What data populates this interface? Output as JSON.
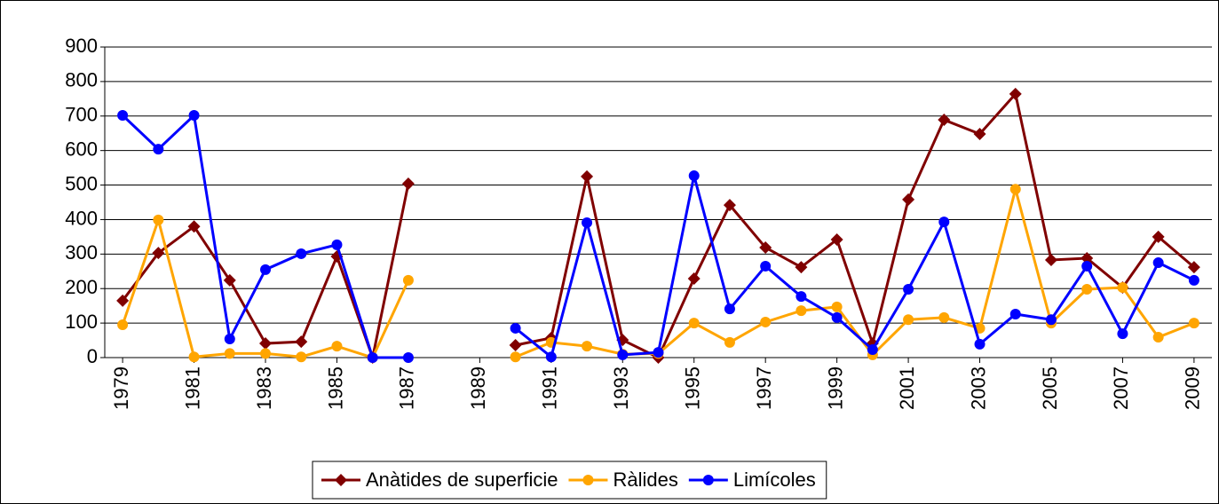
{
  "chart_data": {
    "type": "line",
    "x": [
      1979,
      1980,
      1981,
      1982,
      1983,
      1984,
      1985,
      1986,
      1987,
      1988,
      1989,
      1990,
      1991,
      1992,
      1993,
      1994,
      1995,
      1996,
      1997,
      1998,
      1999,
      2000,
      2001,
      2002,
      2003,
      2004,
      2005,
      2006,
      2007,
      2008,
      2009
    ],
    "xlim": [
      1978.5,
      2009.5
    ],
    "xticks": [
      1979,
      1981,
      1983,
      1985,
      1987,
      1989,
      1991,
      1993,
      1995,
      1997,
      1999,
      2001,
      2003,
      2005,
      2007,
      2009
    ],
    "ylim": [
      0,
      900
    ],
    "yticks": [
      0,
      100,
      200,
      300,
      400,
      500,
      600,
      700,
      800,
      900
    ],
    "grid": true,
    "legend": "bottom",
    "series": [
      {
        "name": "Anàtides de superficie",
        "color": "#800000",
        "marker": "diamond",
        "values": [
          165,
          303,
          380,
          224,
          41,
          46,
          293,
          0,
          504,
          null,
          null,
          36,
          57,
          525,
          51,
          0,
          229,
          442,
          319,
          262,
          342,
          41,
          458,
          689,
          648,
          764,
          283,
          288,
          203,
          350,
          262
        ]
      },
      {
        "name": "Ràlides",
        "color": "#ffa500",
        "marker": "circle",
        "values": [
          95,
          399,
          2,
          12,
          12,
          2,
          33,
          0,
          224,
          null,
          null,
          2,
          44,
          33,
          10,
          12,
          100,
          44,
          103,
          136,
          147,
          8,
          110,
          116,
          85,
          488,
          100,
          198,
          203,
          59,
          100
        ]
      },
      {
        "name": "Limícoles",
        "color": "#0000ff",
        "marker": "circle",
        "values": [
          702,
          604,
          702,
          54,
          255,
          301,
          327,
          0,
          0,
          null,
          null,
          85,
          2,
          391,
          8,
          15,
          527,
          141,
          265,
          177,
          116,
          23,
          198,
          393,
          39,
          126,
          110,
          265,
          69,
          275,
          224
        ]
      }
    ]
  }
}
